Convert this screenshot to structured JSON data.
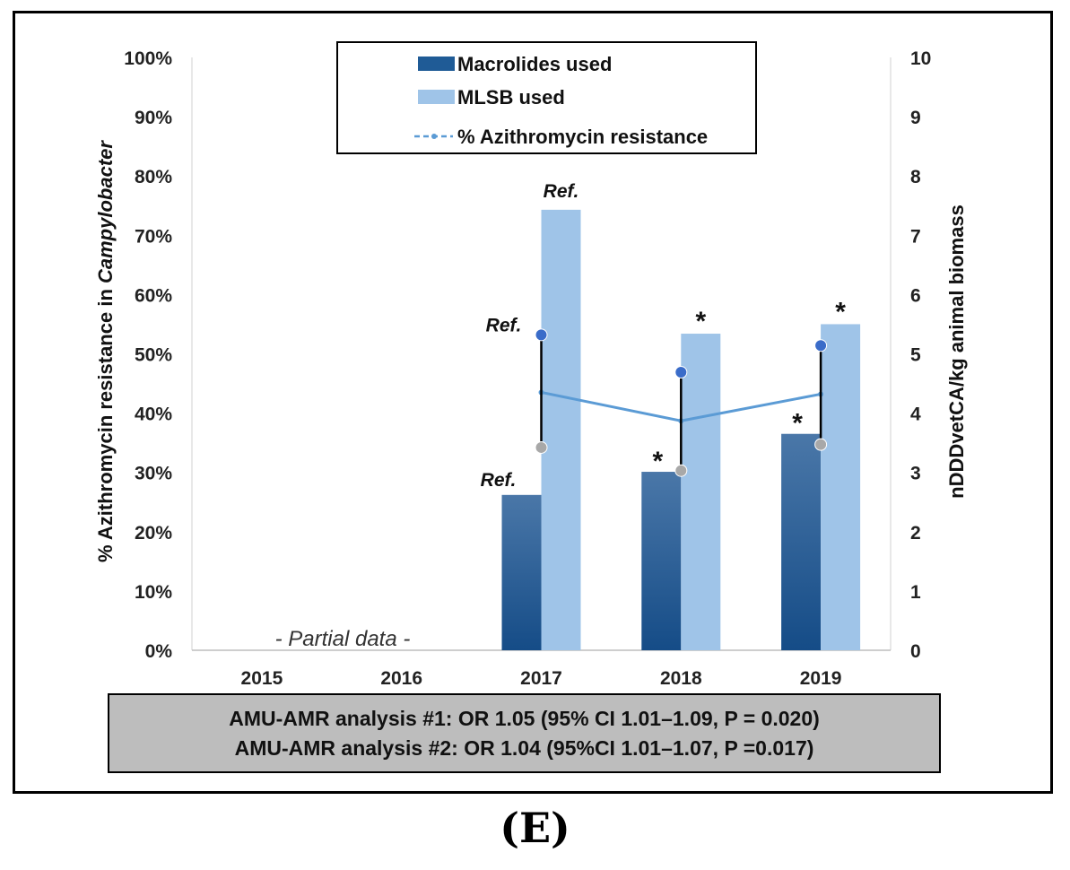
{
  "chart_data": {
    "type": "bar",
    "categories": [
      "2015",
      "2016",
      "2017",
      "2018",
      "2019"
    ],
    "series": [
      {
        "name": "Macrolides used",
        "axis": "right",
        "color": "#1f5b96",
        "values": [
          null,
          null,
          2.62,
          3.01,
          3.65
        ]
      },
      {
        "name": "MLSB used",
        "axis": "right",
        "color": "#9fc4e8",
        "values": [
          null,
          null,
          7.43,
          5.34,
          5.5
        ]
      },
      {
        "name": "% Azithromycin resistance",
        "axis": "left",
        "type": "line",
        "color": "#5b9bd5",
        "values": [
          null,
          null,
          43.5,
          38.7,
          43.2
        ],
        "ci_upper": [
          null,
          null,
          53.2,
          46.9,
          51.4
        ],
        "ci_lower": [
          null,
          null,
          34.2,
          30.3,
          34.7
        ]
      }
    ],
    "ylabel_left_prefix": "% Azithromycin resistance in ",
    "ylabel_left_italic": "Campylobacter",
    "ylabel_right": "nDDDvetCA/kg animal biomass",
    "ylim_left": [
      0,
      100
    ],
    "ylim_right": [
      0,
      10
    ],
    "left_ticks": [
      "0%",
      "10%",
      "20%",
      "30%",
      "40%",
      "50%",
      "60%",
      "70%",
      "80%",
      "90%",
      "100%"
    ],
    "right_ticks": [
      "0",
      "1",
      "2",
      "3",
      "4",
      "5",
      "6",
      "7",
      "8",
      "9",
      "10"
    ],
    "legend": [
      "Macrolides used",
      "MLSB used",
      "% Azithromycin resistance"
    ],
    "legend_position": "top-center",
    "annotations": {
      "ref_label": "Ref.",
      "star_label": "*",
      "partial_data": "- Partial data -"
    },
    "stats": [
      "AMU-AMR analysis #1: OR 1.05 (95% CI 1.01–1.09, P = 0.020)",
      "AMU-AMR analysis #2: OR 1.04 (95%CI 1.01–1.07, P =0.017)"
    ]
  },
  "panel_label": "(E)",
  "colors": {
    "macrolides": "#1f5b96",
    "mlsb": "#9fc4e8",
    "line": "#5b9bd5",
    "ci_upper_marker": "#3a6cc9",
    "ci_lower_marker": "#a8a8a8"
  }
}
